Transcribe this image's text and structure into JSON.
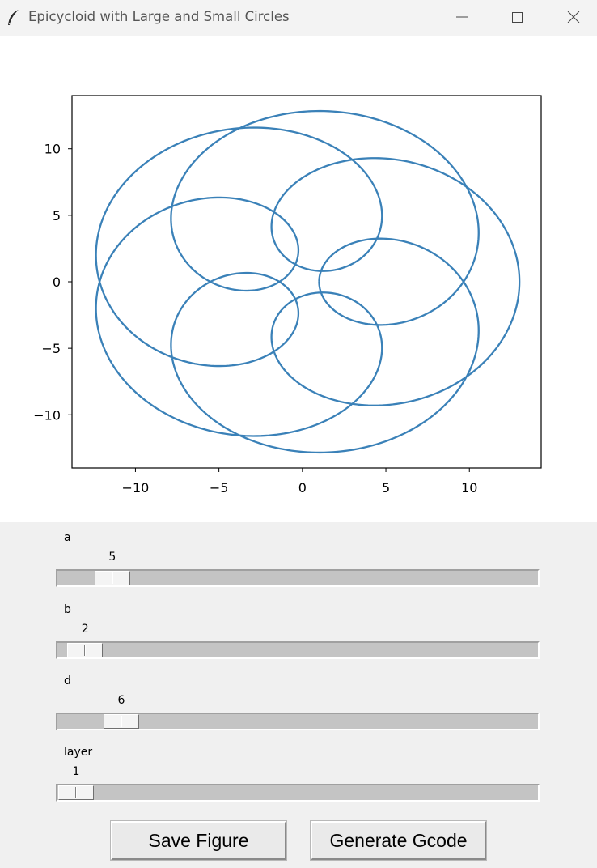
{
  "window": {
    "title": "Epicycloid with Large and Small Circles",
    "icon": "feather-icon",
    "controls": [
      "minimize-icon",
      "maximize-icon",
      "close-icon"
    ]
  },
  "chart_data": {
    "type": "line",
    "title": "",
    "xlabel": "",
    "ylabel": "",
    "xlim": [
      -13.8,
      14.3
    ],
    "ylim": [
      -14.0,
      14.0
    ],
    "xticks": [
      -10,
      -5,
      0,
      5,
      10
    ],
    "yticks": [
      10,
      5,
      0,
      -5,
      -10
    ],
    "xtick_labels": [
      "−10",
      "−5",
      "0",
      "5",
      "10"
    ],
    "ytick_labels": [
      "10",
      "5",
      "0",
      "−5",
      "−10"
    ],
    "grid": false,
    "line_color": "#3a81b8",
    "curve": {
      "equation": "x = (a+b)cos(t) - d*cos((a+b)/b * t), y = (a+b)sin(t) - d*sin((a+b)/b * t)",
      "a": 5,
      "b": 2,
      "d": 6,
      "t_range": [
        0,
        12.566
      ]
    }
  },
  "sliders": [
    {
      "label": "a",
      "value": "5",
      "min": 1,
      "max": 100
    },
    {
      "label": "b",
      "value": "2",
      "min": 1,
      "max": 100
    },
    {
      "label": "d",
      "value": "6",
      "min": 1,
      "max": 100
    },
    {
      "label": "layer",
      "value": "1",
      "min": 1,
      "max": 100
    }
  ],
  "buttons": {
    "save_label": "Save Figure",
    "gcode_label": "Generate Gcode"
  }
}
